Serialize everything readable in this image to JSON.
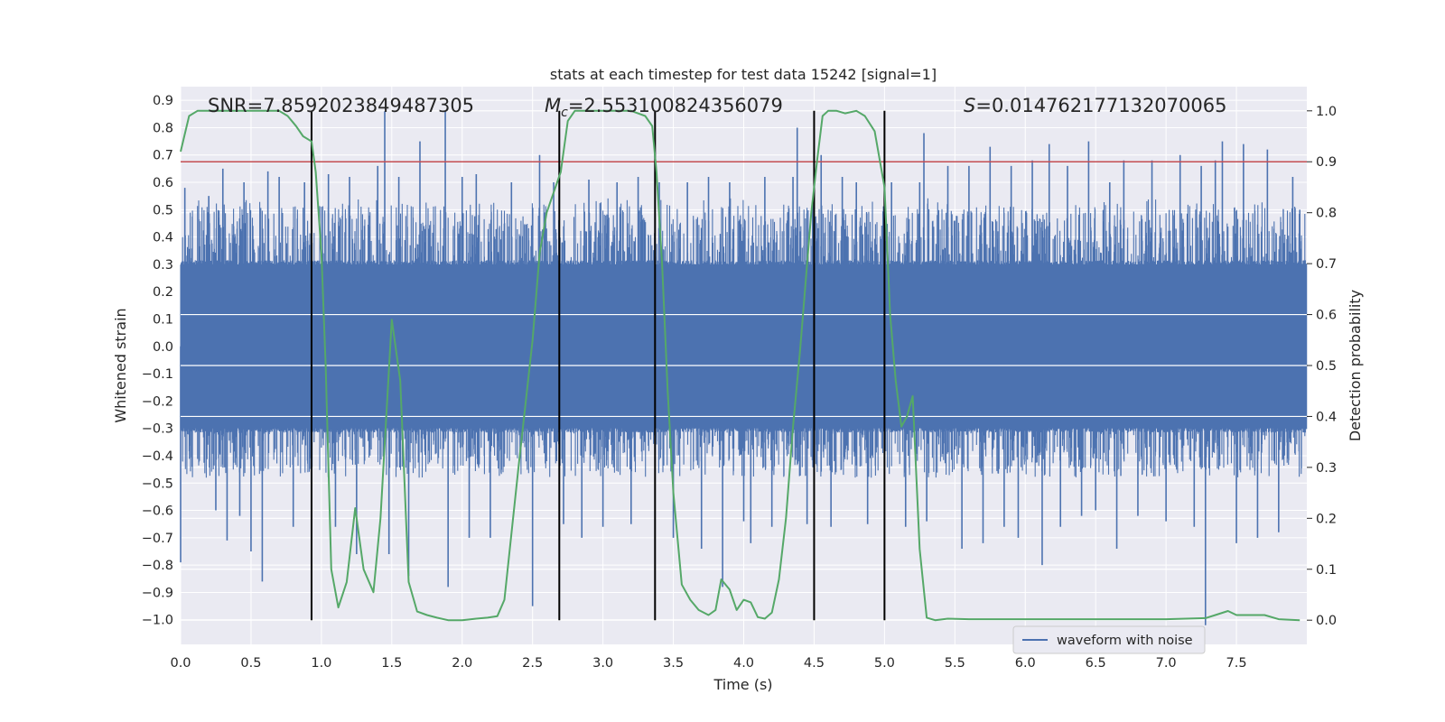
{
  "chart_data": {
    "type": "line",
    "title": "stats at each timestep for test data 15242 [signal=1]",
    "xlabel": "Time (s)",
    "ylabel_left": "Whitened strain",
    "ylabel_right": "Detection probability",
    "xlim": [
      0.0,
      8.0
    ],
    "ylim_left": [
      -1.09,
      0.95
    ],
    "ylim_right": [
      -0.0475,
      1.0475
    ],
    "x_ticks": [
      0.0,
      0.5,
      1.0,
      1.5,
      2.0,
      2.5,
      3.0,
      3.5,
      4.0,
      4.5,
      5.0,
      5.5,
      6.0,
      6.5,
      7.0,
      7.5
    ],
    "x_tick_labels": [
      "0.0",
      "0.5",
      "1.0",
      "1.5",
      "2.0",
      "2.5",
      "3.0",
      "3.5",
      "4.0",
      "4.5",
      "5.0",
      "5.5",
      "6.0",
      "6.5",
      "7.0",
      "7.5"
    ],
    "y_left_ticks": [
      -1.0,
      -0.9,
      -0.8,
      -0.7,
      -0.6,
      -0.5,
      -0.4,
      -0.3,
      -0.2,
      -0.1,
      0.0,
      0.1,
      0.2,
      0.3,
      0.4,
      0.5,
      0.6,
      0.7,
      0.8,
      0.9
    ],
    "y_left_tick_labels": [
      "−1.0",
      "−0.9",
      "−0.8",
      "−0.7",
      "−0.6",
      "−0.5",
      "−0.4",
      "−0.3",
      "−0.2",
      "−0.1",
      "0.0",
      "0.1",
      "0.2",
      "0.3",
      "0.4",
      "0.5",
      "0.6",
      "0.7",
      "0.8",
      "0.9"
    ],
    "y_right_ticks": [
      0.0,
      0.1,
      0.2,
      0.3,
      0.4,
      0.5,
      0.6,
      0.7,
      0.8,
      0.9,
      1.0
    ],
    "y_right_tick_labels": [
      "0.0",
      "0.1",
      "0.2",
      "0.3",
      "0.4",
      "0.5",
      "0.6",
      "0.7",
      "0.8",
      "0.9",
      "1.0"
    ],
    "grid": true,
    "legend": {
      "placement": "lower-right",
      "entries": [
        {
          "label": "waveform with noise",
          "color": "#4c72b0"
        }
      ]
    },
    "annotations": [
      {
        "text": "SNR=7.8592023849487305",
        "anchor_x": 0.18
      },
      {
        "prefix": "M",
        "sub": "c",
        "suffix": "=2.553100824356079",
        "anchor_x": 2.6
      },
      {
        "prefix": "S",
        "suffix": "=0.014762177132070065",
        "anchor_x": 5.6
      }
    ],
    "series": [
      {
        "name": "waveform with noise",
        "axis": "left",
        "color": "#4c72b0",
        "sample_rate": 500,
        "core_amplitude": 0.3,
        "envelope_top": 0.52,
        "envelope_bottom": -0.48,
        "spikes": [
          [
            0.0,
            -0.79
          ],
          [
            0.03,
            0.58
          ],
          [
            0.2,
            0.55
          ],
          [
            0.25,
            -0.6
          ],
          [
            0.3,
            0.65
          ],
          [
            0.33,
            -0.71
          ],
          [
            0.42,
            -0.62
          ],
          [
            0.45,
            0.6
          ],
          [
            0.5,
            -0.75
          ],
          [
            0.58,
            -0.86
          ],
          [
            0.62,
            0.64
          ],
          [
            0.7,
            0.62
          ],
          [
            0.8,
            -0.66
          ],
          [
            0.88,
            0.6
          ],
          [
            1.05,
            0.63
          ],
          [
            1.1,
            -0.66
          ],
          [
            1.2,
            0.62
          ],
          [
            1.25,
            -0.76
          ],
          [
            1.4,
            0.66
          ],
          [
            1.45,
            0.86
          ],
          [
            1.48,
            -0.76
          ],
          [
            1.55,
            0.62
          ],
          [
            1.62,
            -0.84
          ],
          [
            1.7,
            0.75
          ],
          [
            1.88,
            0.86
          ],
          [
            1.9,
            -0.88
          ],
          [
            2.0,
            0.62
          ],
          [
            2.05,
            -0.7
          ],
          [
            2.1,
            0.63
          ],
          [
            2.2,
            -0.7
          ],
          [
            2.35,
            0.6
          ],
          [
            2.5,
            -0.95
          ],
          [
            2.55,
            0.7
          ],
          [
            2.65,
            0.6
          ],
          [
            2.72,
            -0.65
          ],
          [
            2.85,
            -0.7
          ],
          [
            2.9,
            0.61
          ],
          [
            3.0,
            -0.66
          ],
          [
            3.1,
            0.6
          ],
          [
            3.2,
            -0.65
          ],
          [
            3.25,
            0.62
          ],
          [
            3.4,
            0.6
          ],
          [
            3.5,
            -0.7
          ],
          [
            3.6,
            0.6
          ],
          [
            3.7,
            -0.74
          ],
          [
            3.75,
            0.62
          ],
          [
            3.85,
            -0.88
          ],
          [
            3.9,
            0.6
          ],
          [
            4.0,
            -0.64
          ],
          [
            4.05,
            -0.72
          ],
          [
            4.15,
            0.62
          ],
          [
            4.2,
            -0.66
          ],
          [
            4.35,
            0.62
          ],
          [
            4.38,
            0.8
          ],
          [
            4.45,
            -0.65
          ],
          [
            4.55,
            0.7
          ],
          [
            4.62,
            -0.66
          ],
          [
            4.7,
            0.62
          ],
          [
            4.8,
            0.6
          ],
          [
            4.88,
            -0.65
          ],
          [
            5.05,
            0.6
          ],
          [
            5.15,
            -0.66
          ],
          [
            5.25,
            0.6
          ],
          [
            5.28,
            0.78
          ],
          [
            5.3,
            -0.64
          ],
          [
            5.45,
            0.66
          ],
          [
            5.55,
            -0.74
          ],
          [
            5.6,
            0.66
          ],
          [
            5.7,
            -0.72
          ],
          [
            5.75,
            0.73
          ],
          [
            5.85,
            -0.66
          ],
          [
            5.9,
            0.66
          ],
          [
            5.95,
            -0.7
          ],
          [
            6.05,
            0.68
          ],
          [
            6.12,
            -0.8
          ],
          [
            6.17,
            0.74
          ],
          [
            6.25,
            -0.66
          ],
          [
            6.3,
            0.66
          ],
          [
            6.4,
            -0.62
          ],
          [
            6.45,
            0.75
          ],
          [
            6.5,
            -0.6
          ],
          [
            6.6,
            0.6
          ],
          [
            6.65,
            -0.74
          ],
          [
            6.7,
            0.68
          ],
          [
            6.8,
            -0.62
          ],
          [
            6.9,
            0.68
          ],
          [
            7.0,
            -0.64
          ],
          [
            7.1,
            0.7
          ],
          [
            7.2,
            -0.66
          ],
          [
            7.25,
            0.66
          ],
          [
            7.28,
            -1.02
          ],
          [
            7.35,
            0.68
          ],
          [
            7.4,
            0.75
          ],
          [
            7.5,
            -0.72
          ],
          [
            7.55,
            0.74
          ],
          [
            7.65,
            -0.7
          ],
          [
            7.72,
            0.72
          ],
          [
            7.8,
            -0.68
          ],
          [
            7.9,
            0.62
          ],
          [
            7.95,
            0.5
          ]
        ]
      },
      {
        "name": "Detection probability",
        "axis": "right",
        "color": "#55a868",
        "x": [
          0.0,
          0.06,
          0.12,
          0.2,
          0.3,
          0.4,
          0.5,
          0.6,
          0.7,
          0.76,
          0.82,
          0.87,
          0.93,
          0.96,
          1.0,
          1.03,
          1.07,
          1.12,
          1.18,
          1.24,
          1.3,
          1.37,
          1.42,
          1.5,
          1.56,
          1.62,
          1.68,
          1.75,
          1.82,
          1.9,
          2.0,
          2.1,
          2.18,
          2.25,
          2.3,
          2.4,
          2.5,
          2.55,
          2.6,
          2.65,
          2.7,
          2.75,
          2.8,
          2.85,
          3.0,
          3.1,
          3.2,
          3.3,
          3.35,
          3.38,
          3.42,
          3.46,
          3.5,
          3.56,
          3.62,
          3.68,
          3.75,
          3.8,
          3.84,
          3.9,
          3.95,
          4.0,
          4.05,
          4.1,
          4.15,
          4.2,
          4.25,
          4.3,
          4.35,
          4.4,
          4.48,
          4.52,
          4.56,
          4.6,
          4.66,
          4.72,
          4.8,
          4.86,
          4.93,
          5.0,
          5.04,
          5.08,
          5.12,
          5.16,
          5.2,
          5.25,
          5.3,
          5.36,
          5.45,
          5.6,
          6.0,
          6.5,
          7.0,
          7.28,
          7.35,
          7.44,
          7.5,
          7.6,
          7.7,
          7.8,
          7.95
        ],
        "y": [
          0.92,
          0.99,
          1.0,
          1.0,
          1.0,
          1.0,
          1.0,
          1.0,
          1.0,
          0.99,
          0.97,
          0.95,
          0.94,
          0.88,
          0.72,
          0.5,
          0.1,
          0.025,
          0.075,
          0.22,
          0.1,
          0.055,
          0.2,
          0.59,
          0.47,
          0.075,
          0.017,
          0.01,
          0.005,
          0.0,
          0.0,
          0.003,
          0.005,
          0.008,
          0.04,
          0.3,
          0.55,
          0.72,
          0.8,
          0.84,
          0.88,
          0.98,
          1.0,
          1.0,
          1.0,
          1.0,
          1.0,
          0.99,
          0.97,
          0.88,
          0.7,
          0.45,
          0.25,
          0.07,
          0.04,
          0.02,
          0.01,
          0.02,
          0.08,
          0.06,
          0.02,
          0.04,
          0.035,
          0.006,
          0.003,
          0.015,
          0.08,
          0.2,
          0.38,
          0.53,
          0.8,
          0.9,
          0.99,
          1.0,
          1.0,
          0.995,
          1.0,
          0.99,
          0.96,
          0.85,
          0.6,
          0.47,
          0.38,
          0.4,
          0.44,
          0.14,
          0.005,
          0.0,
          0.003,
          0.002,
          0.002,
          0.002,
          0.002,
          0.004,
          0.01,
          0.018,
          0.01,
          0.01,
          0.01,
          0.002,
          0.0
        ]
      }
    ],
    "hlines": [
      {
        "axis": "right",
        "y": 0.9,
        "color": "#c44e52"
      }
    ],
    "vlines": [
      {
        "x": 0.93,
        "color": "#000000"
      },
      {
        "x": 2.69,
        "color": "#000000"
      },
      {
        "x": 3.37,
        "color": "#000000"
      },
      {
        "x": 4.5,
        "color": "#000000"
      },
      {
        "x": 5.0,
        "color": "#000000"
      }
    ],
    "colors": {
      "plot_background": "#eaeaf2",
      "grid": "#ffffff",
      "text": "#262626"
    }
  }
}
